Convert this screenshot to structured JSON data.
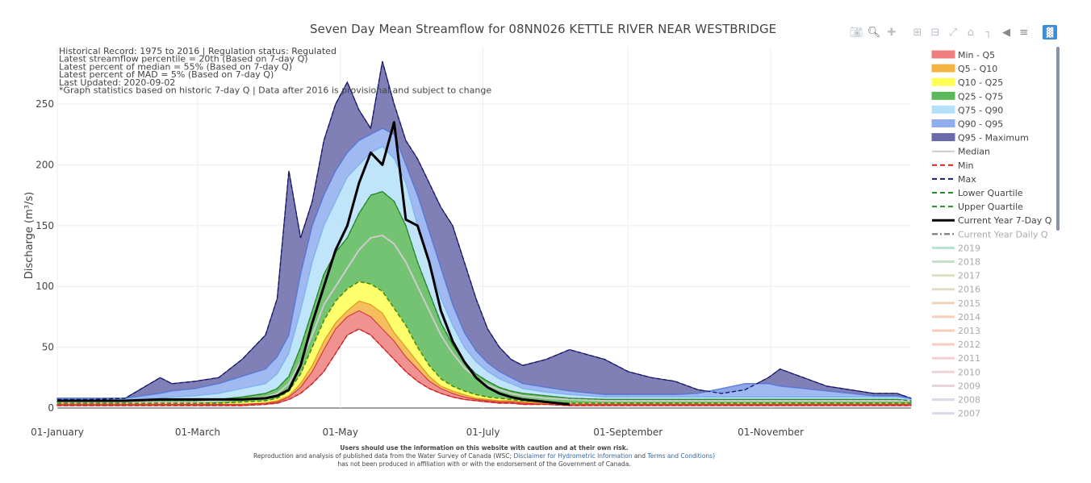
{
  "chart_data": {
    "type": "area",
    "title": "Seven Day Mean Streamflow for 08NN026 KETTLE RIVER NEAR WESTBRIDGE",
    "ylabel": "Discharge (m³/s)",
    "xlabel": "",
    "ylim": [
      0,
      280
    ],
    "yticks": [
      0,
      50,
      100,
      150,
      200,
      250
    ],
    "xlim_days": [
      1,
      366
    ],
    "xticks": [
      {
        "day": 1,
        "label": "01-January"
      },
      {
        "day": 61,
        "label": "01-March"
      },
      {
        "day": 122,
        "label": "01-May"
      },
      {
        "day": 183,
        "label": "01-July"
      },
      {
        "day": 245,
        "label": "01-September"
      },
      {
        "day": 306,
        "label": "01-November"
      }
    ],
    "grid": true,
    "legend_position": "right",
    "annotations": [
      "Historical Record: 1975 to 2016 | Regulation status: Regulated",
      "Latest streamflow percentile = 20th (Based on 7-day Q)",
      "Latest percent of median = 55% (Based on 7-day Q)",
      "Latest percent of MAD = 5% (Based on 7-day Q)",
      "Last Updated: 2020-09-02",
      "*Graph statistics based on historic 7-day Q  | Data after 2016 is provisional and subject to change"
    ],
    "x": [
      1,
      15,
      30,
      45,
      50,
      60,
      70,
      80,
      90,
      95,
      100,
      105,
      110,
      115,
      120,
      125,
      130,
      135,
      140,
      145,
      150,
      155,
      160,
      165,
      170,
      175,
      180,
      185,
      190,
      195,
      200,
      210,
      220,
      235,
      245,
      255,
      265,
      275,
      285,
      295,
      305,
      310,
      320,
      330,
      340,
      350,
      360,
      366
    ],
    "series": [
      {
        "name": "Min",
        "values": [
          2,
          2,
          2,
          2,
          2,
          2,
          2,
          2,
          3,
          4,
          7,
          12,
          20,
          30,
          45,
          60,
          65,
          60,
          50,
          40,
          30,
          22,
          16,
          12,
          9,
          7,
          6,
          5,
          4,
          4,
          3,
          3,
          2,
          2,
          2,
          2,
          2,
          2,
          2,
          2,
          2,
          2,
          2,
          2,
          2,
          2,
          2,
          2
        ]
      },
      {
        "name": "Q5",
        "values": [
          3,
          3,
          3,
          3,
          3,
          3,
          3,
          3,
          4,
          5,
          9,
          17,
          30,
          48,
          65,
          75,
          80,
          75,
          65,
          55,
          42,
          32,
          22,
          16,
          12,
          9,
          7,
          6,
          5,
          5,
          4,
          3,
          3,
          3,
          3,
          3,
          3,
          3,
          3,
          3,
          3,
          3,
          3,
          3,
          3,
          3,
          3,
          3
        ]
      },
      {
        "name": "Q10",
        "values": [
          3,
          3,
          3,
          3,
          3,
          3,
          3,
          3,
          4,
          6,
          10,
          20,
          35,
          55,
          70,
          80,
          88,
          85,
          78,
          62,
          50,
          38,
          26,
          18,
          14,
          11,
          8,
          7,
          6,
          6,
          5,
          4,
          3,
          3,
          3,
          3,
          3,
          3,
          3,
          3,
          3,
          3,
          3,
          3,
          3,
          3,
          3,
          3
        ]
      },
      {
        "name": "Q25",
        "values": [
          4,
          4,
          4,
          4,
          4,
          4,
          4,
          5,
          6,
          8,
          14,
          28,
          50,
          72,
          88,
          98,
          104,
          102,
          96,
          82,
          68,
          50,
          35,
          24,
          18,
          14,
          11,
          9,
          8,
          7,
          6,
          5,
          4,
          4,
          4,
          4,
          4,
          4,
          4,
          4,
          4,
          4,
          4,
          4,
          4,
          4,
          4,
          4
        ]
      },
      {
        "name": "Median",
        "values": [
          5,
          5,
          5,
          5,
          5,
          5,
          6,
          7,
          9,
          12,
          20,
          38,
          60,
          85,
          100,
          115,
          130,
          140,
          142,
          135,
          120,
          100,
          80,
          60,
          45,
          33,
          25,
          19,
          15,
          12,
          10,
          8,
          7,
          6,
          6,
          6,
          6,
          6,
          6,
          6,
          6,
          6,
          6,
          6,
          6,
          6,
          6,
          6
        ]
      },
      {
        "name": "Q75",
        "values": [
          6,
          6,
          6,
          6,
          6,
          6,
          7,
          9,
          12,
          16,
          26,
          50,
          80,
          110,
          128,
          140,
          160,
          175,
          178,
          170,
          150,
          120,
          95,
          70,
          52,
          38,
          28,
          22,
          17,
          14,
          12,
          10,
          8,
          7,
          7,
          7,
          7,
          7,
          7,
          7,
          7,
          7,
          7,
          7,
          7,
          7,
          7,
          6
        ]
      },
      {
        "name": "Q90",
        "values": [
          7,
          7,
          7,
          8,
          9,
          10,
          12,
          16,
          20,
          28,
          45,
          80,
          120,
          150,
          170,
          190,
          200,
          210,
          215,
          205,
          185,
          150,
          120,
          90,
          68,
          50,
          38,
          30,
          24,
          20,
          16,
          13,
          11,
          9,
          9,
          9,
          9,
          9,
          9,
          9,
          9,
          9,
          9,
          9,
          9,
          9,
          9,
          7
        ]
      },
      {
        "name": "Q95",
        "values": [
          8,
          8,
          8,
          12,
          14,
          16,
          20,
          26,
          32,
          42,
          60,
          110,
          150,
          175,
          195,
          210,
          220,
          225,
          230,
          225,
          200,
          175,
          145,
          115,
          85,
          62,
          47,
          37,
          30,
          25,
          20,
          17,
          14,
          11,
          11,
          11,
          11,
          12,
          16,
          20,
          20,
          18,
          16,
          14,
          12,
          10,
          10,
          8
        ]
      },
      {
        "name": "Max",
        "values": [
          7,
          7,
          8,
          25,
          20,
          22,
          25,
          40,
          60,
          90,
          195,
          140,
          170,
          220,
          250,
          268,
          245,
          230,
          285,
          250,
          220,
          205,
          185,
          165,
          150,
          120,
          90,
          65,
          50,
          40,
          35,
          40,
          48,
          40,
          30,
          25,
          22,
          15,
          12,
          15,
          25,
          32,
          25,
          18,
          15,
          12,
          12,
          8
        ]
      },
      {
        "name": "Current Year 7-Day Q",
        "values": [
          6,
          6,
          6,
          7,
          7,
          7,
          7,
          7,
          8,
          10,
          15,
          35,
          70,
          100,
          130,
          150,
          185,
          210,
          200,
          235,
          155,
          150,
          120,
          80,
          55,
          38,
          25,
          17,
          12,
          9,
          7,
          5,
          3,
          null,
          null,
          null,
          null,
          null,
          null,
          null,
          null,
          null,
          null,
          null,
          null,
          null,
          null,
          null
        ]
      }
    ],
    "legend": [
      {
        "label": "Min - Q5",
        "kind": "band",
        "color": "#ef7f7f"
      },
      {
        "label": "Q5 - Q10",
        "kind": "band",
        "color": "#f5b342"
      },
      {
        "label": "Q10 - Q25",
        "kind": "band",
        "color": "#ffff55"
      },
      {
        "label": "Q25 - Q75",
        "kind": "band",
        "color": "#5bb85b"
      },
      {
        "label": "Q75 - Q90",
        "kind": "band",
        "color": "#b5e0fa"
      },
      {
        "label": "Q90 - Q95",
        "kind": "band",
        "color": "#8fadef"
      },
      {
        "label": "Q95 - Maximum",
        "kind": "band",
        "color": "#6a6aaa"
      },
      {
        "label": "Median",
        "kind": "line",
        "color": "#cccccc"
      },
      {
        "label": "Min",
        "kind": "dash",
        "color": "#d81c1c"
      },
      {
        "label": "Max",
        "kind": "dash",
        "color": "#1a1a6e"
      },
      {
        "label": "Lower Quartile",
        "kind": "dash",
        "color": "#2a8a2a"
      },
      {
        "label": "Upper Quartile",
        "kind": "dash",
        "color": "#2a8a2a"
      },
      {
        "label": "Current Year 7-Day Q",
        "kind": "thick",
        "color": "#000000"
      },
      {
        "label": "Current Year Daily Q",
        "kind": "dashdot",
        "color": "#888888",
        "faded": true
      },
      {
        "label": "2019",
        "kind": "year",
        "color": "#a5ddc5",
        "faded": true
      },
      {
        "label": "2018",
        "kind": "year",
        "color": "#b8dcb8",
        "faded": true
      },
      {
        "label": "2017",
        "kind": "year",
        "color": "#d2dcb8",
        "faded": true
      },
      {
        "label": "2016",
        "kind": "year",
        "color": "#dcd4b8",
        "faded": true
      },
      {
        "label": "2015",
        "kind": "year",
        "color": "#ecc8a8",
        "faded": true
      },
      {
        "label": "2014",
        "kind": "year",
        "color": "#f2c4a8",
        "faded": true
      },
      {
        "label": "2013",
        "kind": "year",
        "color": "#f4c0aa",
        "faded": true
      },
      {
        "label": "2012",
        "kind": "year",
        "color": "#f4c2b2",
        "faded": true
      },
      {
        "label": "2011",
        "kind": "year",
        "color": "#f2c2c2",
        "faded": true
      },
      {
        "label": "2010",
        "kind": "year",
        "color": "#ecc6cc",
        "faded": true
      },
      {
        "label": "2009",
        "kind": "year",
        "color": "#e2c8d4",
        "faded": true
      },
      {
        "label": "2008",
        "kind": "year",
        "color": "#d8cce0",
        "faded": true
      },
      {
        "label": "2007",
        "kind": "year",
        "color": "#cfd2e8",
        "faded": true
      }
    ]
  },
  "toolbar": {
    "icons": [
      "camera-icon",
      "zoom-icon",
      "pan-icon",
      "zoom-in-icon",
      "zoom-out-icon",
      "autoscale-icon",
      "reset-axes-icon",
      "spike-lines-icon",
      "hover-closest-icon",
      "hover-compare-icon",
      "plotly-logo-icon"
    ]
  },
  "footer": {
    "line1": "Users should use the information on this website with caution and at their own risk.",
    "line2_pre": "Reproduction and analysis of published data from the Water Survey of Canada (WSC;",
    "line2_link1": "Disclaimer for Hydrometric Information",
    "line2_and": "and",
    "line2_link2": "Terms and Conditions)",
    "line3": "has not been produced in affiliation with or with the endorsement of the Government of Canada."
  }
}
